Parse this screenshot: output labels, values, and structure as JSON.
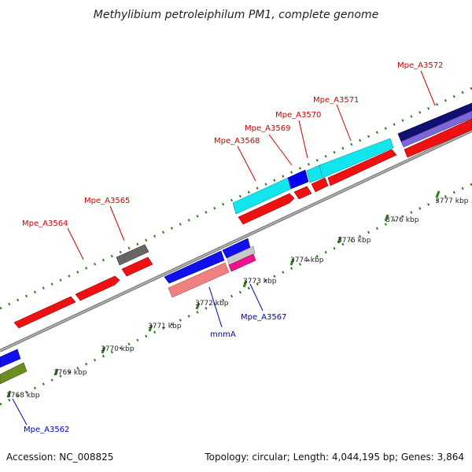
{
  "title": "Methylibium petroleiphilum PM1, complete genome",
  "footer": {
    "accession": "Accession: NC_008825",
    "summary": "Topology: circular; Length: 4,044,195 bp; Genes: 3,864"
  },
  "colors": {
    "forward_label": "#cc0000",
    "reverse_label": "#0000bb",
    "backbone": "#888888",
    "tick": "#2e7d1f"
  },
  "kbp_labels": [
    {
      "text": "3768 kbp",
      "kbp": 3768
    },
    {
      "text": "3769 kbp",
      "kbp": 3769
    },
    {
      "text": "3770 kbp",
      "kbp": 3770
    },
    {
      "text": "3771 kbp",
      "kbp": 3771
    },
    {
      "text": "3772 kbp",
      "kbp": 3772
    },
    {
      "text": "3773 kbp",
      "kbp": 3773
    },
    {
      "text": "3774 kbp",
      "kbp": 3774
    },
    {
      "text": "3775 kbp",
      "kbp": 3775
    },
    {
      "text": "3776 kbp",
      "kbp": 3776
    },
    {
      "text": "3777 kbp",
      "kbp": 3777
    }
  ],
  "gene_labels": [
    {
      "text": "Mpe_A3572",
      "strand": "forward"
    },
    {
      "text": "Mpe_A3571",
      "strand": "forward"
    },
    {
      "text": "Mpe_A3570",
      "strand": "forward"
    },
    {
      "text": "Mpe_A3569",
      "strand": "forward"
    },
    {
      "text": "Mpe_A3568",
      "strand": "forward"
    },
    {
      "text": "Mpe_A3565",
      "strand": "forward"
    },
    {
      "text": "Mpe_A3564",
      "strand": "forward"
    },
    {
      "text": "Mpe_A3567",
      "strand": "reverse"
    },
    {
      "text": "mnmA",
      "strand": "reverse"
    },
    {
      "text": "Mpe_A3562",
      "strand": "reverse"
    }
  ]
}
